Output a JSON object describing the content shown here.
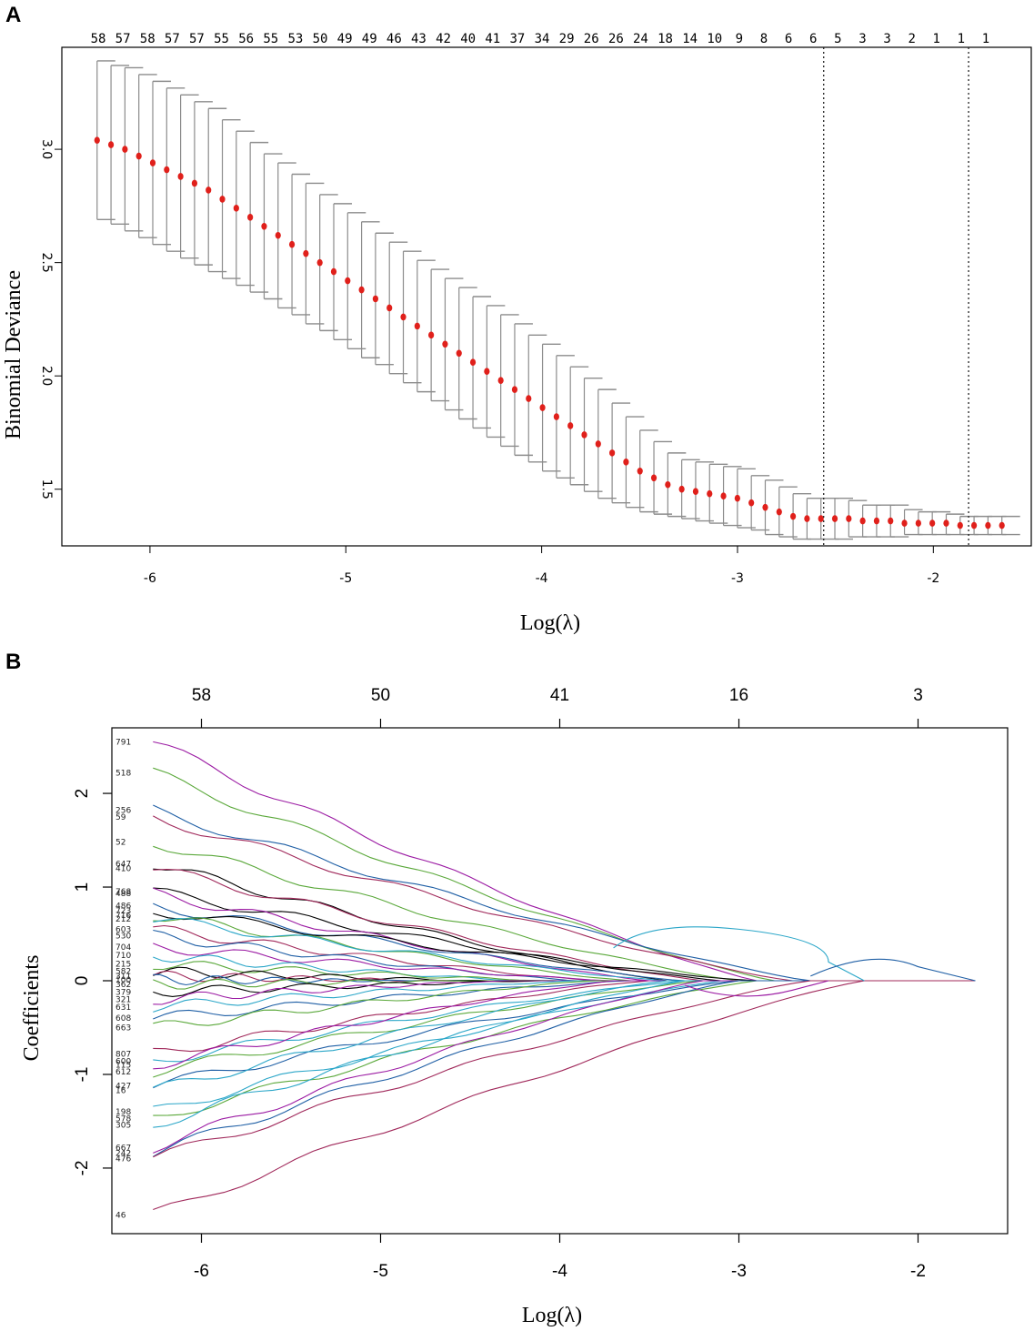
{
  "chart_data": [
    {
      "panel": "A",
      "type": "scatter",
      "xlabel": "Log(λ)",
      "ylabel": "Binomial Deviance",
      "xlim": [
        -6.45,
        -1.5
      ],
      "ylim": [
        1.25,
        3.45
      ],
      "xticks": [
        "-6",
        "-5",
        "-4",
        "-3",
        "-2"
      ],
      "yticks": [
        "1.5",
        "2.0",
        "2.5",
        "3.0"
      ],
      "top_labels": [
        "58",
        "57",
        "58",
        "57",
        "57",
        "55",
        "56",
        "55",
        "53",
        "50",
        "49",
        "49",
        "46",
        "43",
        "42",
        "40",
        "41",
        "37",
        "34",
        "29",
        "26",
        "26",
        "24",
        "18",
        "14",
        "10",
        "9",
        "8",
        "6",
        "6",
        "5",
        "3",
        "3",
        "2",
        "1",
        "1",
        "1"
      ],
      "vlines": [
        -2.56,
        -1.82
      ],
      "x_start": -6.27,
      "x_end": -1.65,
      "n_points": 66,
      "means": [
        3.04,
        3.02,
        3.0,
        2.97,
        2.94,
        2.91,
        2.88,
        2.85,
        2.82,
        2.78,
        2.74,
        2.7,
        2.66,
        2.62,
        2.58,
        2.54,
        2.5,
        2.46,
        2.42,
        2.38,
        2.34,
        2.3,
        2.26,
        2.22,
        2.18,
        2.14,
        2.1,
        2.06,
        2.02,
        1.98,
        1.94,
        1.9,
        1.86,
        1.82,
        1.78,
        1.74,
        1.7,
        1.66,
        1.62,
        1.58,
        1.55,
        1.52,
        1.5,
        1.49,
        1.48,
        1.47,
        1.46,
        1.44,
        1.42,
        1.4,
        1.38,
        1.37,
        1.37,
        1.37,
        1.37,
        1.36,
        1.36,
        1.36,
        1.35,
        1.35,
        1.35,
        1.35,
        1.34,
        1.34,
        1.34,
        1.34
      ],
      "lower": [
        2.69,
        2.67,
        2.64,
        2.61,
        2.58,
        2.55,
        2.52,
        2.49,
        2.46,
        2.43,
        2.4,
        2.37,
        2.34,
        2.3,
        2.27,
        2.23,
        2.2,
        2.16,
        2.12,
        2.08,
        2.05,
        2.01,
        1.97,
        1.93,
        1.89,
        1.85,
        1.81,
        1.77,
        1.73,
        1.69,
        1.65,
        1.62,
        1.58,
        1.55,
        1.52,
        1.49,
        1.46,
        1.44,
        1.42,
        1.4,
        1.39,
        1.38,
        1.37,
        1.36,
        1.35,
        1.34,
        1.33,
        1.32,
        1.3,
        1.29,
        1.28,
        1.28,
        1.28,
        1.28,
        1.29,
        1.29,
        1.29,
        1.29,
        1.3,
        1.3,
        1.3,
        1.3,
        1.3,
        1.3,
        1.3,
        1.3
      ],
      "upper": [
        3.39,
        3.37,
        3.36,
        3.33,
        3.3,
        3.27,
        3.24,
        3.21,
        3.18,
        3.13,
        3.08,
        3.03,
        2.98,
        2.94,
        2.89,
        2.85,
        2.8,
        2.76,
        2.72,
        2.68,
        2.63,
        2.59,
        2.55,
        2.51,
        2.47,
        2.43,
        2.39,
        2.35,
        2.31,
        2.27,
        2.23,
        2.18,
        2.14,
        2.09,
        2.04,
        1.99,
        1.94,
        1.88,
        1.82,
        1.76,
        1.71,
        1.66,
        1.63,
        1.62,
        1.61,
        1.6,
        1.59,
        1.56,
        1.54,
        1.51,
        1.48,
        1.46,
        1.46,
        1.46,
        1.45,
        1.43,
        1.43,
        1.43,
        1.41,
        1.4,
        1.4,
        1.39,
        1.38,
        1.38,
        1.38,
        1.38
      ]
    },
    {
      "panel": "B",
      "type": "line",
      "xlabel": "Log(λ)",
      "ylabel": "Coefficients",
      "xlim": [
        -6.5,
        -1.5
      ],
      "ylim": [
        -2.7,
        2.7
      ],
      "xticks": [
        "-6",
        "-5",
        "-4",
        "-3",
        "-2"
      ],
      "yticks": [
        "-2",
        "-1",
        "0",
        "1",
        "2"
      ],
      "top_ticks": [
        {
          "x": -6.0,
          "label": "58"
        },
        {
          "x": -5.0,
          "label": "50"
        },
        {
          "x": -4.0,
          "label": "41"
        },
        {
          "x": -3.0,
          "label": "16"
        },
        {
          "x": -2.0,
          "label": "3"
        }
      ],
      "x_start": -6.27,
      "x_end": -1.68,
      "series": [
        {
          "name": "791",
          "color": "#9b1aa3",
          "y0": 2.55,
          "xz": -2.9
        },
        {
          "name": "518",
          "color": "#5aa83a",
          "y0": 2.22,
          "xz": -2.8
        },
        {
          "name": "256",
          "color": "#1f5fa5",
          "y0": 1.82,
          "xz": -2.6
        },
        {
          "name": "59",
          "color": "#a0285a",
          "y0": 1.75,
          "xz": -2.7
        },
        {
          "name": "52",
          "color": "#5aa83a",
          "y0": 1.48,
          "xz": -3.0
        },
        {
          "name": "647",
          "color": "#000000",
          "y0": 1.25,
          "xz": -3.4
        },
        {
          "name": "410",
          "color": "#a0285a",
          "y0": 1.2,
          "xz": -3.2
        },
        {
          "name": "768",
          "color": "#000000",
          "y0": 0.95,
          "xz": -3.1
        },
        {
          "name": "488",
          "color": "#9b1aa3",
          "y0": 0.93,
          "xz": -3.5
        },
        {
          "name": "486",
          "color": "#1f5fa5",
          "y0": 0.8,
          "xz": -3.3
        },
        {
          "name": "723",
          "color": "#000000",
          "y0": 0.75,
          "xz": -2.9
        },
        {
          "name": "716",
          "color": "#5aa83a",
          "y0": 0.7,
          "xz": -3.6
        },
        {
          "name": "212",
          "color": "#2aa6c8",
          "y0": 0.66,
          "xz": -3.4
        },
        {
          "name": "603",
          "color": "#a0285a",
          "y0": 0.55,
          "xz": -3.8
        },
        {
          "name": "530",
          "color": "#1f5fa5",
          "y0": 0.48,
          "xz": -3.9
        },
        {
          "name": "704",
          "color": "#9b1aa3",
          "y0": 0.36,
          "xz": -3.7
        },
        {
          "name": "710",
          "color": "#2aa6c8",
          "y0": 0.27,
          "xz": -4.2
        },
        {
          "name": "215",
          "color": "#5aa83a",
          "y0": 0.18,
          "xz": -4.0
        },
        {
          "name": "582",
          "color": "#000000",
          "y0": 0.1,
          "xz": -4.4
        },
        {
          "name": "311",
          "color": "#a0285a",
          "y0": 0.05,
          "xz": -4.6
        },
        {
          "name": "100",
          "color": "#1f5fa5",
          "y0": 0.01,
          "xz": -4.8
        },
        {
          "name": "362",
          "color": "#5aa83a",
          "y0": -0.04,
          "xz": -4.5
        },
        {
          "name": "379",
          "color": "#000000",
          "y0": -0.12,
          "xz": -4.1
        },
        {
          "name": "321",
          "color": "#9b1aa3",
          "y0": -0.2,
          "xz": -4.3
        },
        {
          "name": "631",
          "color": "#2aa6c8",
          "y0": -0.28,
          "xz": -3.9
        },
        {
          "name": "608",
          "color": "#1f5fa5",
          "y0": -0.4,
          "xz": -3.6
        },
        {
          "name": "663",
          "color": "#5aa83a",
          "y0": -0.5,
          "xz": -3.8
        },
        {
          "name": "807",
          "color": "#a0285a",
          "y0": -0.78,
          "xz": -3.5
        },
        {
          "name": "600",
          "color": "#2aa6c8",
          "y0": -0.86,
          "xz": -3.3
        },
        {
          "name": "115",
          "color": "#9b1aa3",
          "y0": -0.9,
          "xz": -3.7
        },
        {
          "name": "612",
          "color": "#5aa83a",
          "y0": -0.97,
          "xz": -3.2
        },
        {
          "name": "427",
          "color": "#1f5fa5",
          "y0": -1.12,
          "xz": -3.0
        },
        {
          "name": "16",
          "color": "#2aa6c8",
          "y0": -1.17,
          "xz": -3.4
        },
        {
          "name": "198",
          "color": "#2aa6c8",
          "y0": -1.4,
          "xz": -3.1
        },
        {
          "name": "578",
          "color": "#5aa83a",
          "y0": -1.47,
          "xz": -2.9
        },
        {
          "name": "305",
          "color": "#2aa6c8",
          "y0": -1.54,
          "xz": -3.3
        },
        {
          "name": "667",
          "color": "#9b1aa3",
          "y0": -1.78,
          "xz": -3.2
        },
        {
          "name": "242",
          "color": "#1f5fa5",
          "y0": -1.84,
          "xz": -3.0
        },
        {
          "name": "476",
          "color": "#a0285a",
          "y0": -1.9,
          "xz": -2.6
        },
        {
          "name": "46",
          "color": "#a0285a",
          "y0": -2.5,
          "xz": -2.3
        }
      ]
    }
  ],
  "panels": {
    "a_label": "A",
    "b_label": "B"
  }
}
